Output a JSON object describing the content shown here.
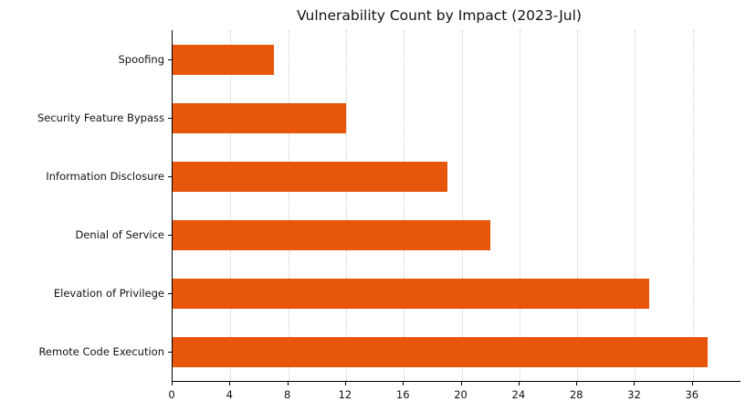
{
  "chart_data": {
    "type": "bar",
    "orientation": "horizontal",
    "title": "Vulnerability Count by Impact (2023-Jul)",
    "categories": [
      "Spoofing",
      "Security Feature Bypass",
      "Information Disclosure",
      "Denial of Service",
      "Elevation of Privilege",
      "Remote Code Execution"
    ],
    "values": [
      7,
      12,
      19,
      22,
      33,
      37
    ],
    "xlabel": "",
    "ylabel": "",
    "xlim": [
      0,
      39.3
    ],
    "xticks": [
      0,
      4,
      8,
      12,
      16,
      20,
      24,
      28,
      32,
      36
    ],
    "grid": "vertical-dotted",
    "legend": "none",
    "bar_color": "#E8560B",
    "gridline_color": "#cbcbcb",
    "text_color": "#111111",
    "background_color": "#ffffff"
  }
}
